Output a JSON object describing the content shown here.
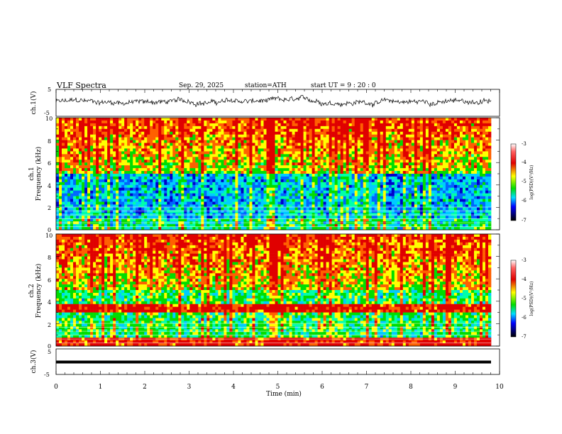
{
  "header": {
    "title": "VLF  Spectra",
    "date": "Sep. 29, 2025",
    "station": "station=ATH",
    "start": "start  UT  =    9  : 20 : 0"
  },
  "chart_data": [
    {
      "type": "line",
      "ylabel": "ch.1(V)",
      "ylim": [
        -5,
        5
      ],
      "xlim": [
        0,
        10
      ],
      "ytick_labels": [
        "5",
        "-5"
      ],
      "description": "noisy waveform, amplitude roughly -1.5 to 2.5 V over 0-9.8 min"
    },
    {
      "type": "heatmap",
      "ylabel": [
        "ch.1",
        "Frequency  (kHz)"
      ],
      "ylim": [
        0,
        10
      ],
      "xlim": [
        0,
        10
      ],
      "ytick_labels": [
        "0",
        "2",
        "4",
        "6",
        "8",
        "10"
      ],
      "colorbar": {
        "label": "log(PSD)(V²/Hz)",
        "range": [
          -7,
          -3
        ],
        "tick_labels": [
          "-3",
          "-4",
          "-5",
          "-6",
          "-7"
        ]
      }
    },
    {
      "type": "heatmap",
      "ylabel": [
        "ch.2",
        "Frequency  (kHz)"
      ],
      "ylim": [
        0,
        10
      ],
      "xlim": [
        0,
        10
      ],
      "ytick_labels": [
        "0",
        "2",
        "4",
        "6",
        "8",
        "10"
      ],
      "colorbar": {
        "label": "log(PSD)(V²/Hz)",
        "range": [
          -7,
          -3
        ],
        "tick_labels": [
          "-3",
          "-4",
          "-5",
          "-6",
          "-7"
        ]
      }
    },
    {
      "type": "line",
      "ylabel": "ch.3(V)",
      "ylim": [
        -5,
        5
      ],
      "xlim": [
        0,
        10
      ],
      "xlabel": "Time  (min)",
      "ytick_labels": [
        "5",
        "-5"
      ],
      "xtick_labels": [
        "0",
        "1",
        "2",
        "3",
        "4",
        "5",
        "6",
        "7",
        "8",
        "9",
        "10"
      ],
      "constant_value": 0
    }
  ]
}
